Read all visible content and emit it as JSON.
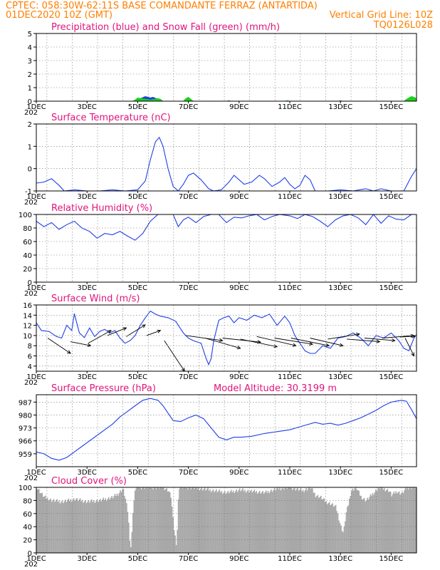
{
  "header": {
    "line1_left": "CPTEC:   058:30W-62:11S   BASE COMANDANTE FERRAZ (ANTARTIDA)",
    "line2_left": "01DEC2020 10Z (GMT)",
    "line2_right": "Vertical Grid Line: 10Z",
    "line3_right": "TQ0126L028"
  },
  "colors": {
    "header": "#ff7f00",
    "title": "#e0147c",
    "line": "#1f3fe8",
    "precip": "#1f3fe8",
    "snow": "#19d219",
    "cloud": "#a8a8a8"
  },
  "x_labels": [
    "1DEC",
    "3DEC",
    "5DEC",
    "7DEC",
    "9DEC",
    "11DEC",
    "13DEC",
    "15DEC"
  ],
  "x_year_stub": "202",
  "chart_data": [
    {
      "id": "precip",
      "type": "area",
      "title": "Precipitation (blue) and Snow Fall (green) (mm/h)",
      "ylim": [
        0,
        5
      ],
      "yticks": [
        0,
        1,
        2,
        3,
        4,
        5
      ],
      "xlim": [
        0,
        15
      ],
      "grid": true,
      "series": [
        {
          "name": "Precipitation",
          "x": [
            0,
            3.8,
            4.0,
            4.1,
            4.3,
            4.5,
            4.6,
            4.8,
            4.9,
            5.0,
            5.1,
            5.2,
            5.3,
            5.5,
            15
          ],
          "values": [
            0,
            0,
            0.05,
            0.2,
            0.35,
            0.25,
            0.3,
            0.15,
            0.05,
            0,
            0,
            0,
            0,
            0,
            0
          ]
        },
        {
          "name": "Snow Fall",
          "x": [
            0,
            3.8,
            3.9,
            4.0,
            4.5,
            4.8,
            4.9,
            5.0,
            5.8,
            5.9,
            6.0,
            6.1,
            6.2,
            7.5,
            7.6,
            7.7,
            9.8,
            9.9,
            10.0,
            11.9,
            12.0,
            12.1,
            14.5,
            14.6,
            14.7,
            14.8,
            14.9,
            15.0
          ],
          "values": [
            0,
            0,
            0.1,
            0.25,
            0.1,
            0.2,
            0.15,
            0,
            0,
            0.2,
            0.3,
            0.15,
            0,
            0,
            0.05,
            0,
            0,
            0.05,
            0,
            0,
            0.05,
            0,
            0,
            0.15,
            0.25,
            0.35,
            0.3,
            0.2
          ]
        }
      ]
    },
    {
      "id": "temp",
      "type": "line",
      "title": "Surface Temperature (nC)",
      "ylim": [
        -1,
        2
      ],
      "yticks": [
        -1,
        0,
        1,
        2
      ],
      "xlim": [
        0,
        15
      ],
      "grid": true,
      "series": [
        {
          "name": "",
          "x": [
            0,
            0.3,
            0.6,
            0.9,
            1.1,
            1.5,
            2.0,
            2.5,
            3.0,
            3.5,
            4.0,
            4.3,
            4.5,
            4.7,
            4.85,
            5.0,
            5.2,
            5.4,
            5.6,
            5.8,
            6.0,
            6.2,
            6.5,
            6.8,
            7.0,
            7.3,
            7.6,
            7.8,
            8.2,
            8.5,
            8.8,
            9.0,
            9.3,
            9.6,
            9.8,
            10.0,
            10.2,
            10.4,
            10.6,
            10.8,
            11.0,
            11.5,
            12.0,
            12.5,
            13.0,
            13.3,
            13.6,
            14.0,
            14.5,
            14.8,
            15.0
          ],
          "values": [
            -0.65,
            -0.6,
            -0.45,
            -0.75,
            -1.0,
            -0.95,
            -1.0,
            -1.0,
            -0.95,
            -1.0,
            -0.95,
            -0.55,
            0.4,
            1.2,
            1.4,
            1.0,
            0.0,
            -0.8,
            -1.0,
            -0.7,
            -0.3,
            -0.2,
            -0.5,
            -0.9,
            -1.0,
            -0.95,
            -0.6,
            -0.3,
            -0.7,
            -0.6,
            -0.3,
            -0.45,
            -0.8,
            -0.6,
            -0.4,
            -0.7,
            -0.9,
            -0.75,
            -0.3,
            -0.5,
            -1.0,
            -1.0,
            -0.95,
            -1.0,
            -0.9,
            -1.0,
            -0.9,
            -1.0,
            -1.0,
            -0.35,
            0.0
          ]
        }
      ]
    },
    {
      "id": "rh",
      "type": "line",
      "title": "Relative Humidity (%)",
      "ylim": [
        0,
        100
      ],
      "yticks": [
        0,
        20,
        40,
        60,
        80,
        100
      ],
      "xlim": [
        0,
        15
      ],
      "grid": true,
      "series": [
        {
          "name": "",
          "x": [
            0,
            0.3,
            0.6,
            0.9,
            1.2,
            1.5,
            1.8,
            2.1,
            2.4,
            2.7,
            3.0,
            3.3,
            3.6,
            3.9,
            4.2,
            4.5,
            4.8,
            5.1,
            5.4,
            5.6,
            5.8,
            6.0,
            6.3,
            6.6,
            6.9,
            7.2,
            7.5,
            7.8,
            8.1,
            8.4,
            8.7,
            9.0,
            9.3,
            9.6,
            10.0,
            10.3,
            10.6,
            10.9,
            11.2,
            11.5,
            11.8,
            12.1,
            12.4,
            12.7,
            13.0,
            13.3,
            13.6,
            13.9,
            14.2,
            14.5,
            14.8,
            15.0
          ],
          "values": [
            90,
            82,
            88,
            78,
            85,
            90,
            80,
            75,
            65,
            72,
            70,
            75,
            68,
            62,
            72,
            90,
            100,
            100,
            100,
            82,
            92,
            96,
            88,
            97,
            100,
            100,
            88,
            96,
            95,
            98,
            100,
            92,
            97,
            100,
            98,
            94,
            100,
            97,
            90,
            82,
            92,
            98,
            100,
            95,
            85,
            100,
            87,
            98,
            93,
            92,
            100,
            100
          ]
        }
      ]
    },
    {
      "id": "wind",
      "type": "line",
      "title": "Surface Wind (m/s)",
      "ylim": [
        3,
        16
      ],
      "yticks": [
        4,
        6,
        8,
        10,
        12,
        14,
        16
      ],
      "xlim": [
        0,
        15
      ],
      "grid": true,
      "series": [
        {
          "name": "",
          "x": [
            0,
            0.2,
            0.5,
            0.8,
            1.0,
            1.2,
            1.4,
            1.5,
            1.7,
            1.9,
            2.1,
            2.3,
            2.5,
            2.7,
            2.9,
            3.1,
            3.3,
            3.5,
            3.7,
            3.9,
            4.1,
            4.3,
            4.5,
            4.7,
            4.9,
            5.2,
            5.5,
            5.8,
            6.0,
            6.2,
            6.5,
            6.7,
            6.8,
            6.9,
            7.0,
            7.2,
            7.4,
            7.6,
            7.8,
            8.0,
            8.3,
            8.6,
            8.9,
            9.2,
            9.5,
            9.8,
            10.0,
            10.2,
            10.4,
            10.6,
            10.8,
            11.0,
            11.3,
            11.6,
            11.9,
            12.2,
            12.5,
            12.8,
            13.1,
            13.4,
            13.7,
            14.0,
            14.3,
            14.5,
            14.7,
            14.9,
            15.0
          ],
          "values": [
            12.5,
            11.0,
            10.8,
            9.8,
            9.5,
            12.0,
            11.0,
            14.3,
            10.5,
            9.6,
            11.5,
            9.8,
            10.8,
            11.2,
            10.5,
            11.0,
            9.5,
            8.5,
            9.0,
            10.0,
            12.0,
            13.5,
            14.8,
            14.2,
            13.8,
            13.5,
            12.8,
            10.5,
            9.5,
            9.0,
            8.5,
            5.5,
            4.3,
            5.5,
            9.0,
            13.0,
            13.5,
            13.8,
            12.5,
            13.5,
            13.0,
            14.0,
            13.5,
            14.2,
            12.0,
            13.8,
            12.5,
            10.0,
            8.5,
            7.0,
            6.5,
            6.5,
            8.0,
            7.5,
            9.5,
            9.8,
            10.5,
            9.5,
            8.0,
            10.0,
            9.5,
            10.5,
            9.0,
            7.5,
            7.0,
            9.5,
            10.2
          ]
        }
      ],
      "vectors": [
        {
          "x": 0.45,
          "y": 9.5,
          "dx": 0.9,
          "dy": -3.0
        },
        {
          "x": 1.35,
          "y": 8.8,
          "dx": 0.8,
          "dy": -0.8
        },
        {
          "x": 2.05,
          "y": 8.5,
          "dx": 0.9,
          "dy": 2.5
        },
        {
          "x": 2.8,
          "y": 10.0,
          "dx": 0.75,
          "dy": 1.5
        },
        {
          "x": 3.55,
          "y": 9.8,
          "dx": 0.75,
          "dy": 2.3
        },
        {
          "x": 4.35,
          "y": 10.0,
          "dx": 0.55,
          "dy": 1.0
        },
        {
          "x": 5.05,
          "y": 9.0,
          "dx": 0.8,
          "dy": -6.0
        },
        {
          "x": 5.9,
          "y": 10.0,
          "dx": 1.45,
          "dy": -1.0
        },
        {
          "x": 6.65,
          "y": 9.5,
          "dx": 1.4,
          "dy": -2.0
        },
        {
          "x": 7.35,
          "y": 9.5,
          "dx": 1.5,
          "dy": -0.8
        },
        {
          "x": 8.05,
          "y": 9.3,
          "dx": 1.45,
          "dy": -1.5
        },
        {
          "x": 8.7,
          "y": 9.8,
          "dx": 1.55,
          "dy": -1.8
        },
        {
          "x": 9.4,
          "y": 9.5,
          "dx": 1.5,
          "dy": -1.2
        },
        {
          "x": 10.05,
          "y": 9.5,
          "dx": 1.5,
          "dy": -1.5
        },
        {
          "x": 10.8,
          "y": 9.5,
          "dx": 1.3,
          "dy": -1.5
        },
        {
          "x": 11.5,
          "y": 9.3,
          "dx": 1.25,
          "dy": 1.0
        },
        {
          "x": 12.25,
          "y": 9.3,
          "dx": 1.3,
          "dy": -0.5
        },
        {
          "x": 12.95,
          "y": 9.5,
          "dx": 1.2,
          "dy": -0.5
        },
        {
          "x": 13.65,
          "y": 9.5,
          "dx": 1.25,
          "dy": 0.5
        },
        {
          "x": 14.35,
          "y": 9.7,
          "dx": 0.6,
          "dy": 0.2
        },
        {
          "x": 14.55,
          "y": 9.5,
          "dx": 0.35,
          "dy": -3.5
        }
      ]
    },
    {
      "id": "pres",
      "type": "line",
      "title": "Surface Pressure (hPa)",
      "annotation": "Model Altitude: 30.3199 m",
      "ylim": [
        952,
        991
      ],
      "yticks": [
        959,
        966,
        973,
        980,
        987
      ],
      "xlim": [
        0,
        15
      ],
      "grid": true,
      "series": [
        {
          "name": "",
          "x": [
            0,
            0.3,
            0.6,
            0.9,
            1.2,
            1.5,
            1.8,
            2.1,
            2.4,
            2.7,
            3.0,
            3.3,
            3.6,
            3.9,
            4.2,
            4.5,
            4.8,
            5.0,
            5.2,
            5.4,
            5.7,
            6.0,
            6.3,
            6.6,
            6.9,
            7.2,
            7.5,
            7.8,
            8.1,
            8.5,
            9.0,
            9.5,
            10.0,
            10.5,
            11.0,
            11.3,
            11.6,
            11.9,
            12.2,
            12.5,
            12.8,
            13.1,
            13.4,
            13.7,
            14.0,
            14.2,
            14.4,
            14.6,
            14.8,
            15.0
          ],
          "values": [
            960,
            959,
            956.5,
            955.5,
            957,
            960,
            963,
            966,
            969,
            972,
            975,
            979,
            982,
            985,
            988,
            989,
            988,
            985,
            981,
            977,
            976.5,
            978.5,
            980,
            978,
            973,
            968,
            966.5,
            968,
            968,
            968.5,
            970,
            971,
            972,
            974,
            976,
            975,
            975.5,
            974.5,
            975.5,
            977,
            978.5,
            980.5,
            982.5,
            985,
            987,
            987.5,
            988,
            987.5,
            983,
            978
          ]
        }
      ]
    },
    {
      "id": "cloud",
      "type": "bar",
      "title": "Cloud Cover (%)",
      "ylim": [
        0,
        100
      ],
      "yticks": [
        0,
        20,
        40,
        60,
        80,
        100
      ],
      "xlim": [
        0,
        15
      ],
      "grid": true,
      "series": [
        {
          "name": "",
          "x": [
            0,
            0.15,
            0.3,
            0.6,
            1.0,
            1.5,
            2.0,
            2.5,
            3.0,
            3.2,
            3.4,
            3.5,
            3.6,
            3.65,
            3.7,
            3.75,
            3.8,
            3.9,
            4.2,
            4.6,
            5.0,
            5.2,
            5.3,
            5.4,
            5.5,
            5.55,
            5.6,
            6.0,
            6.5,
            7.0,
            7.5,
            8.0,
            8.5,
            9.0,
            9.5,
            10.0,
            10.5,
            10.8,
            11.0,
            11.2,
            11.4,
            11.6,
            11.8,
            11.9,
            12.0,
            12.1,
            12.15,
            12.2,
            12.3,
            12.4,
            12.6,
            12.8,
            13.0,
            13.5,
            13.9,
            14.0,
            14.2,
            14.4,
            14.6,
            14.8,
            15.0
          ],
          "values": [
            100,
            92,
            85,
            80,
            78,
            82,
            78,
            80,
            85,
            90,
            98,
            82,
            60,
            30,
            5,
            30,
            70,
            100,
            100,
            100,
            100,
            95,
            85,
            40,
            15,
            40,
            100,
            100,
            98,
            95,
            92,
            96,
            94,
            92,
            98,
            100,
            95,
            100,
            88,
            85,
            78,
            75,
            70,
            55,
            40,
            30,
            45,
            60,
            75,
            95,
            100,
            85,
            80,
            100,
            95,
            88,
            94,
            90,
            100,
            100,
            100
          ]
        }
      ]
    }
  ]
}
